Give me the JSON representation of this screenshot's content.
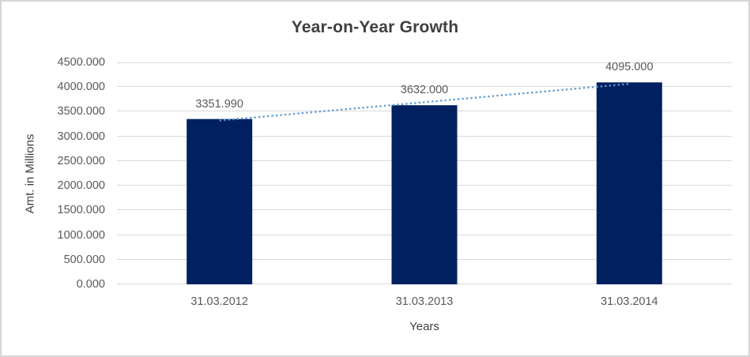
{
  "chart_data": {
    "type": "bar",
    "title": "Year-on-Year Growth",
    "xlabel": "Years",
    "ylabel": "Amt. in Millions",
    "categories": [
      "31.03.2012",
      "31.03.2013",
      "31.03.2014"
    ],
    "values": [
      3351.99,
      3632.0,
      4095.0
    ],
    "data_labels": [
      "3351.990",
      "3632.000",
      "4095.000"
    ],
    "ylim": [
      0,
      4500
    ],
    "ytick_step": 500,
    "ytick_labels": [
      "0.000",
      "500.000",
      "1000.000",
      "1500.000",
      "2000.000",
      "2500.000",
      "3000.000",
      "3500.000",
      "4000.000",
      "4500.000"
    ],
    "grid": true,
    "legend": "none",
    "trendline": {
      "type": "linear",
      "style": "dotted"
    },
    "colors": {
      "bar": "#012060",
      "trendline": "#5b9bd5",
      "gridline": "#d9d9d9",
      "title_text": "#3f3f3f",
      "tick_text": "#595959",
      "frame_border": "#d5d5d5"
    }
  }
}
